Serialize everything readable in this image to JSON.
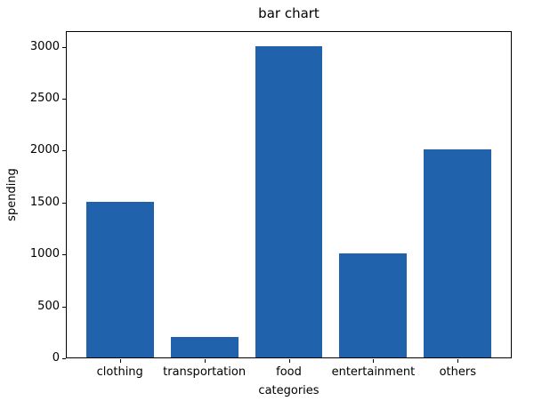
{
  "figure": {
    "background": "#ffffff",
    "spine_color": "#000000",
    "text_color": "#000000"
  },
  "chart_data": {
    "type": "bar",
    "title": "bar chart",
    "xlabel": "categories",
    "ylabel": "spending",
    "categories": [
      "clothing",
      "transportation",
      "food",
      "entertainment",
      "others"
    ],
    "values": [
      1500,
      200,
      3000,
      1000,
      2000
    ],
    "bar_color": "#2063ac",
    "yticks": [
      0,
      500,
      1000,
      1500,
      2000,
      2500,
      3000
    ],
    "ylim": [
      0,
      3150
    ],
    "xlim": [
      -0.64,
      4.64
    ],
    "bar_width": 0.8,
    "grid": false,
    "legend_position": "none"
  }
}
